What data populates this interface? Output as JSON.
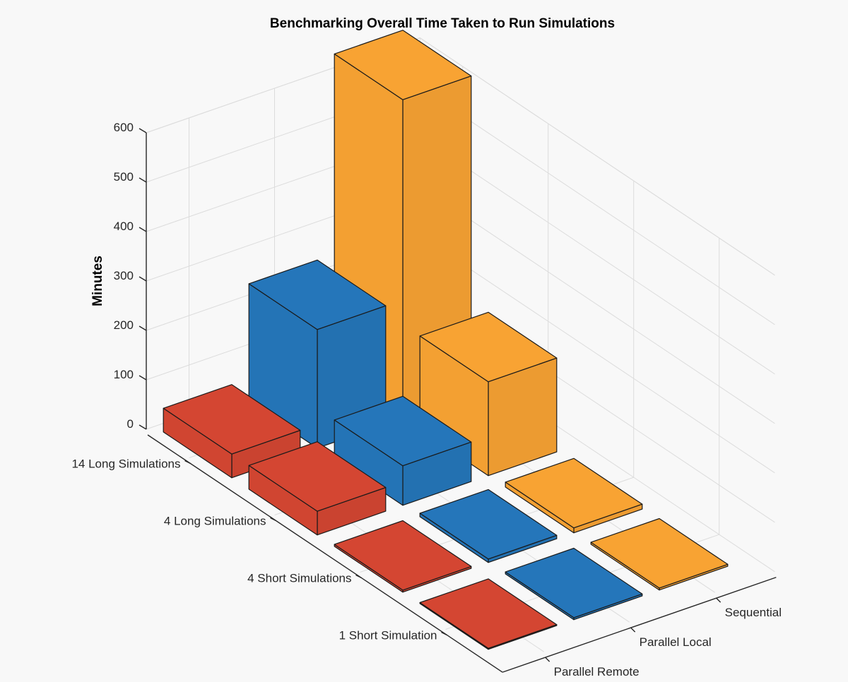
{
  "chart_data": {
    "type": "bar3d",
    "title": "Benchmarking Overall Time Taken to Run Simulations",
    "xlabel": "",
    "ylabel": "",
    "zlabel": "Minutes",
    "zlim": [
      0,
      600
    ],
    "zticks": [
      0,
      100,
      200,
      300,
      400,
      500,
      600
    ],
    "grid": true,
    "legend": "none",
    "row_categories": [
      "14 Long Simulations",
      "4 Long Simulations",
      "4 Short Simulations",
      "1 Short Simulation"
    ],
    "column_categories": [
      "Parallel Remote",
      "Parallel Local",
      "Sequential"
    ],
    "series": [
      {
        "name": "Parallel Remote",
        "color": "#D04531",
        "values": [
          48,
          48,
          4,
          2
        ]
      },
      {
        "name": "Parallel Local",
        "color": "#2474B6",
        "values": [
          240,
          80,
          7,
          4
        ]
      },
      {
        "name": "Sequential",
        "color": "#F3A032",
        "values": [
          645,
          190,
          10,
          4
        ]
      }
    ]
  }
}
